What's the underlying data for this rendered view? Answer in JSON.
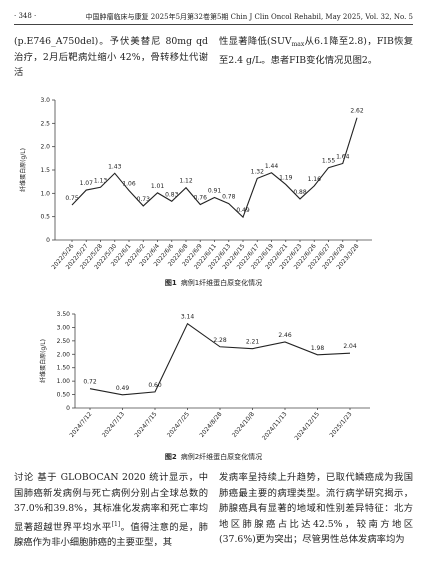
{
  "header": {
    "page": "· 348 ·",
    "journal": "中国肿瘤临床与康复 2025年5月第32卷第5期  Chin J Clin Oncol Rehabil, May 2025, Vol. 32, No. 5"
  },
  "body": {
    "top_left": "(p.E746_A750del)。予伏美替尼 80mg qd 治疗，2月后靶病灶缩小 42%，骨转移灶代谢活",
    "top_right_a": "性显著降低(SUV",
    "top_right_sub": "max",
    "top_right_b": "从6.1降至2.8)，FIB恢复至2.4 g/L。患者FIB变化情况见图2。",
    "bottom_left_a": "讨论  基于 GLOBOCAN 2020 统计显示，中国肺癌新发病例与死亡病例分别占全球总数的37.0%和39.8%，其标准化发病率和死亡率均显著超越世界平均水平",
    "bottom_left_sup": "[1]",
    "bottom_left_b": "。值得注意的是，肺腺癌作为非小细胞肺癌的主要亚型，其",
    "bottom_right": "发病率呈持续上升趋势，已取代鳞癌成为我国肺癌最主要的病理类型。流行病学研究揭示，肺腺癌具有显著的地域和性别差异特征：北方地区肺腺癌占比达42.5%，较南方地区(37.6%)更为突出；尽管男性总体发病率均为"
  },
  "chart_data": [
    {
      "type": "line",
      "figure": "图1",
      "title": "病例1纤维蛋白原变化情况",
      "y_label": "纤维蛋白原(g/L)",
      "color": "#222222",
      "categories": [
        "2022/5/26",
        "2022/5/27",
        "2022/5/28",
        "2022/5/30",
        "2022/6/1",
        "2022/6/2",
        "2022/6/4",
        "2022/6/6",
        "2022/6/8",
        "2022/6/9",
        "2022/6/11",
        "2022/6/13",
        "2022/6/15",
        "2022/6/17",
        "2022/6/19",
        "2022/6/21",
        "2022/6/23",
        "2022/6/26",
        "2022/6/27",
        "2022/6/28",
        "2023/3/28"
      ],
      "values": [
        0.75,
        1.07,
        1.13,
        1.43,
        1.06,
        0.73,
        1.01,
        0.83,
        1.12,
        0.76,
        0.91,
        0.78,
        0.49,
        1.32,
        1.44,
        1.19,
        0.88,
        1.16,
        1.55,
        1.64,
        2.62
      ],
      "ylim": [
        0,
        3
      ],
      "yticks": [
        0,
        0.5,
        {
          "value": 1,
          "label": "1.0"
        },
        1.5,
        {
          "value": 2,
          "label": "2.0"
        },
        2.5,
        {
          "value": 3,
          "label": "3.0"
        }
      ]
    },
    {
      "type": "line",
      "figure": "图2",
      "title": "病例2纤维蛋白原变化情况",
      "y_label": "纤维蛋白原(g/L)",
      "color": "#222222",
      "categories": [
        "2024/7/12",
        "2024/7/13",
        "2024/7/15",
        "2024/7/25",
        "2024/8/28",
        "2024/10/8",
        "2024/11/13",
        "2024/12/15",
        "2025/1/23"
      ],
      "values": [
        0.72,
        0.49,
        0.6,
        3.14,
        2.28,
        2.21,
        2.46,
        1.98,
        2.04
      ],
      "value_labels": [
        "0.72",
        "0.49",
        "0.60",
        "3.14",
        "2.28",
        "2.21",
        "2.46",
        "1.98",
        "2.04"
      ],
      "ylim": [
        0,
        3.5
      ],
      "yticks": [
        0,
        {
          "value": 0.5,
          "label": "0.50"
        },
        {
          "value": 1,
          "label": "1.00"
        },
        {
          "value": 1.5,
          "label": "1.50"
        },
        {
          "value": 2,
          "label": "2.00"
        },
        {
          "value": 2.5,
          "label": "2.50"
        },
        {
          "value": 3,
          "label": "3.00"
        },
        {
          "value": 3.5,
          "label": "3.50"
        }
      ]
    }
  ]
}
